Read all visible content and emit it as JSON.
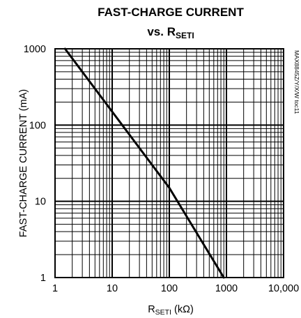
{
  "chart_data": {
    "type": "line",
    "title_line1": "FAST-CHARGE CURRENT",
    "title_line2_prefix": "vs. R",
    "title_line2_sub": "SETI",
    "xlabel_prefix": "R",
    "xlabel_sub": "SETI",
    "xlabel_suffix": " (kΩ)",
    "ylabel": "FAST-CHARGE CURRENT (mA)",
    "x_scale": "log",
    "y_scale": "log",
    "xlim": [
      1,
      10000
    ],
    "ylim": [
      1,
      1000
    ],
    "x_tick_values": [
      1,
      10,
      100,
      1000,
      10000
    ],
    "x_tick_labels": [
      "1",
      "10",
      "100",
      "1000",
      "10,000"
    ],
    "y_tick_values": [
      1,
      10,
      100,
      1000
    ],
    "y_tick_labels": [
      "1",
      "10",
      "100",
      "1000"
    ],
    "grid": true,
    "side_note": "MAX8845Z/Y/X/W toc11",
    "series": [
      {
        "x": [
          1.5,
          10,
          100,
          900
        ],
        "y": [
          1000,
          150,
          15,
          1
        ]
      }
    ]
  }
}
